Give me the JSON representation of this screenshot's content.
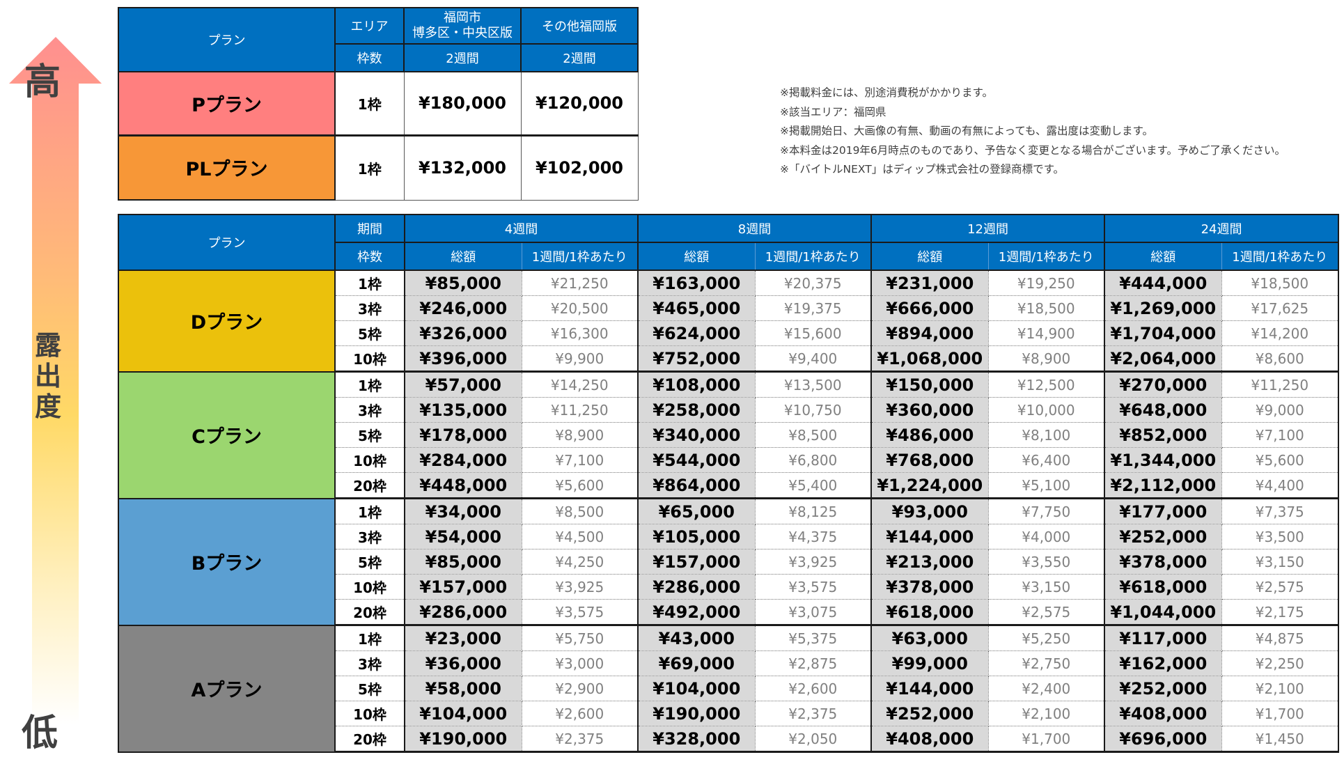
{
  "exposure_scale": {
    "high_label": "高",
    "middle_label": "露出度",
    "low_label": "低",
    "colors": {
      "top": "#FF8F8F",
      "middle": "#FFC56E",
      "mid2": "#FFD966",
      "bottom": "#FFFFFF"
    }
  },
  "top_table": {
    "header": {
      "plan_label": "プラン",
      "area_label": "エリア",
      "slots_label": "枠数",
      "area_cols": [
        {
          "area": "福岡市\n博多区・中央区版",
          "area_line1": "福岡市",
          "area_line2": "博多区・中央区版",
          "period": "2週間"
        },
        {
          "area": "その他福岡版",
          "period": "2週間"
        }
      ]
    },
    "rows": [
      {
        "plan": "Pプラン",
        "color": "#FF7F7F",
        "slots": "1枠",
        "prices": [
          "¥180,000",
          "¥120,000"
        ]
      },
      {
        "plan": "PLプラン",
        "color": "#F79737",
        "slots": "1枠",
        "prices": [
          "¥132,000",
          "¥102,000"
        ]
      }
    ]
  },
  "notes": [
    "※掲載料金には、別途消費税がかかります。",
    "※該当エリア：福岡県",
    "※掲載開始日、大画像の有無、動画の有無によっても、露出度は変動します。",
    "※本料金は2019年6月時点のものであり、予告なく変更となる場合がございます。予めご了承ください。",
    "※「バイトルNEXT」はディップ株式会社の登録商標です。"
  ],
  "main_table": {
    "header": {
      "plan_label": "プラン",
      "period_label": "期間",
      "slots_label": "枠数",
      "periods": [
        "4週間",
        "8週間",
        "12週間",
        "24週間"
      ],
      "total_label": "総額",
      "unit_label": "1週間/1枠あたり"
    },
    "sections": [
      {
        "plan": "Dプラン",
        "color": "#EBC10C",
        "rows": [
          {
            "slots": "1枠",
            "cells": [
              [
                "¥85,000",
                "¥21,250"
              ],
              [
                "¥163,000",
                "¥20,375"
              ],
              [
                "¥231,000",
                "¥19,250"
              ],
              [
                "¥444,000",
                "¥18,500"
              ]
            ]
          },
          {
            "slots": "3枠",
            "cells": [
              [
                "¥246,000",
                "¥20,500"
              ],
              [
                "¥465,000",
                "¥19,375"
              ],
              [
                "¥666,000",
                "¥18,500"
              ],
              [
                "¥1,269,000",
                "¥17,625"
              ]
            ]
          },
          {
            "slots": "5枠",
            "cells": [
              [
                "¥326,000",
                "¥16,300"
              ],
              [
                "¥624,000",
                "¥15,600"
              ],
              [
                "¥894,000",
                "¥14,900"
              ],
              [
                "¥1,704,000",
                "¥14,200"
              ]
            ]
          },
          {
            "slots": "10枠",
            "cells": [
              [
                "¥396,000",
                "¥9,900"
              ],
              [
                "¥752,000",
                "¥9,400"
              ],
              [
                "¥1,068,000",
                "¥8,900"
              ],
              [
                "¥2,064,000",
                "¥8,600"
              ]
            ]
          }
        ]
      },
      {
        "plan": "Cプラン",
        "color": "#9BD66F",
        "rows": [
          {
            "slots": "1枠",
            "cells": [
              [
                "¥57,000",
                "¥14,250"
              ],
              [
                "¥108,000",
                "¥13,500"
              ],
              [
                "¥150,000",
                "¥12,500"
              ],
              [
                "¥270,000",
                "¥11,250"
              ]
            ]
          },
          {
            "slots": "3枠",
            "cells": [
              [
                "¥135,000",
                "¥11,250"
              ],
              [
                "¥258,000",
                "¥10,750"
              ],
              [
                "¥360,000",
                "¥10,000"
              ],
              [
                "¥648,000",
                "¥9,000"
              ]
            ]
          },
          {
            "slots": "5枠",
            "cells": [
              [
                "¥178,000",
                "¥8,900"
              ],
              [
                "¥340,000",
                "¥8,500"
              ],
              [
                "¥486,000",
                "¥8,100"
              ],
              [
                "¥852,000",
                "¥7,100"
              ]
            ]
          },
          {
            "slots": "10枠",
            "cells": [
              [
                "¥284,000",
                "¥7,100"
              ],
              [
                "¥544,000",
                "¥6,800"
              ],
              [
                "¥768,000",
                "¥6,400"
              ],
              [
                "¥1,344,000",
                "¥5,600"
              ]
            ]
          },
          {
            "slots": "20枠",
            "cells": [
              [
                "¥448,000",
                "¥5,600"
              ],
              [
                "¥864,000",
                "¥5,400"
              ],
              [
                "¥1,224,000",
                "¥5,100"
              ],
              [
                "¥2,112,000",
                "¥4,400"
              ]
            ]
          }
        ]
      },
      {
        "plan": "Bプラン",
        "color": "#5B9FD2",
        "rows": [
          {
            "slots": "1枠",
            "cells": [
              [
                "¥34,000",
                "¥8,500"
              ],
              [
                "¥65,000",
                "¥8,125"
              ],
              [
                "¥93,000",
                "¥7,750"
              ],
              [
                "¥177,000",
                "¥7,375"
              ]
            ]
          },
          {
            "slots": "3枠",
            "cells": [
              [
                "¥54,000",
                "¥4,500"
              ],
              [
                "¥105,000",
                "¥4,375"
              ],
              [
                "¥144,000",
                "¥4,000"
              ],
              [
                "¥252,000",
                "¥3,500"
              ]
            ]
          },
          {
            "slots": "5枠",
            "cells": [
              [
                "¥85,000",
                "¥4,250"
              ],
              [
                "¥157,000",
                "¥3,925"
              ],
              [
                "¥213,000",
                "¥3,550"
              ],
              [
                "¥378,000",
                "¥3,150"
              ]
            ]
          },
          {
            "slots": "10枠",
            "cells": [
              [
                "¥157,000",
                "¥3,925"
              ],
              [
                "¥286,000",
                "¥3,575"
              ],
              [
                "¥378,000",
                "¥3,150"
              ],
              [
                "¥618,000",
                "¥2,575"
              ]
            ]
          },
          {
            "slots": "20枠",
            "cells": [
              [
                "¥286,000",
                "¥3,575"
              ],
              [
                "¥492,000",
                "¥3,075"
              ],
              [
                "¥618,000",
                "¥2,575"
              ],
              [
                "¥1,044,000",
                "¥2,175"
              ]
            ]
          }
        ]
      },
      {
        "plan": "Aプラン",
        "color": "#858585",
        "rows": [
          {
            "slots": "1枠",
            "cells": [
              [
                "¥23,000",
                "¥5,750"
              ],
              [
                "¥43,000",
                "¥5,375"
              ],
              [
                "¥63,000",
                "¥5,250"
              ],
              [
                "¥117,000",
                "¥4,875"
              ]
            ]
          },
          {
            "slots": "3枠",
            "cells": [
              [
                "¥36,000",
                "¥3,000"
              ],
              [
                "¥69,000",
                "¥2,875"
              ],
              [
                "¥99,000",
                "¥2,750"
              ],
              [
                "¥162,000",
                "¥2,250"
              ]
            ]
          },
          {
            "slots": "5枠",
            "cells": [
              [
                "¥58,000",
                "¥2,900"
              ],
              [
                "¥104,000",
                "¥2,600"
              ],
              [
                "¥144,000",
                "¥2,400"
              ],
              [
                "¥252,000",
                "¥2,100"
              ]
            ]
          },
          {
            "slots": "10枠",
            "cells": [
              [
                "¥104,000",
                "¥2,600"
              ],
              [
                "¥190,000",
                "¥2,375"
              ],
              [
                "¥252,000",
                "¥2,100"
              ],
              [
                "¥408,000",
                "¥1,700"
              ]
            ]
          },
          {
            "slots": "20枠",
            "cells": [
              [
                "¥190,000",
                "¥2,375"
              ],
              [
                "¥328,000",
                "¥2,050"
              ],
              [
                "¥408,000",
                "¥1,700"
              ],
              [
                "¥696,000",
                "¥1,450"
              ]
            ]
          }
        ]
      }
    ]
  }
}
